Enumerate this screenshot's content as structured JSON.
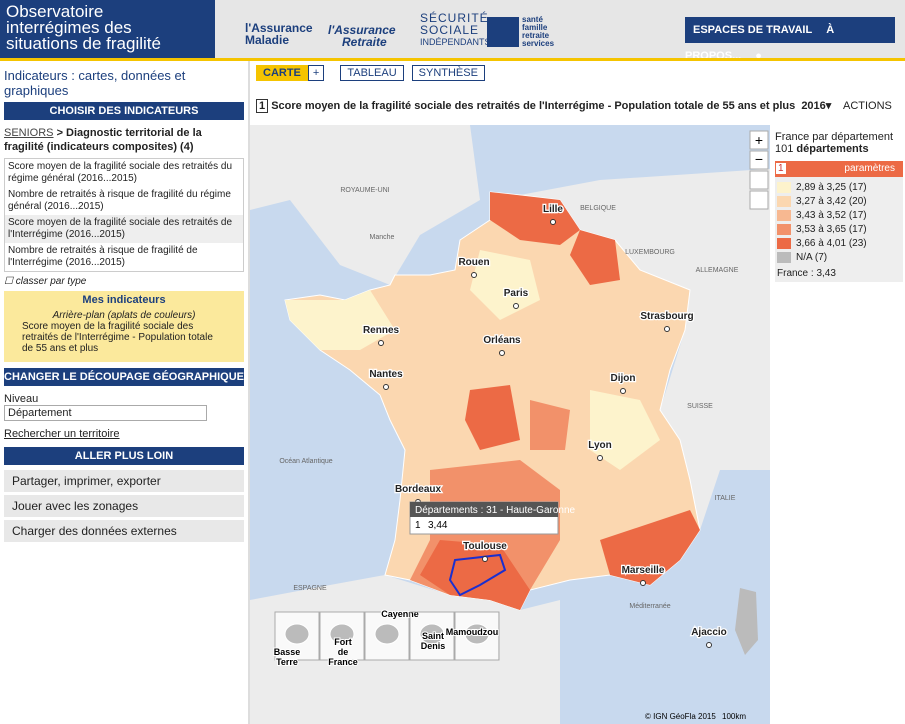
{
  "header": {
    "title": [
      "Observatoire",
      "interrégimes des",
      "situations de fragilité"
    ],
    "logos": [
      "l'Assurance",
      "Maladie",
      "l'Assurance",
      "Retraite",
      "SÉCURITÉ",
      "SOCIALE",
      "INDÉPENDANTS",
      "santé",
      "famille",
      "retraite",
      "services"
    ],
    "nav": [
      "ESPACES DE TRAVAIL",
      "À PROPOS..."
    ]
  },
  "sidebar": {
    "heading": "Indicateurs : cartes, données et graphiques",
    "choose": "CHOISIR DES INDICATEURS",
    "breadcrumb": {
      "link": "SENIORS",
      "rest": " > Diagnostic territorial de la fragilité (indicateurs composites) (4)"
    },
    "indicators": [
      "Score moyen de la fragilité sociale des retraités du régime général (2016...2015)",
      "Nombre de retraités à risque de fragilité du régime général (2016...2015)",
      "Score moyen de la fragilité sociale des retraités de l'Interrégime (2016...2015)",
      "Nombre de retraités à risque de fragilité de l'Interrégime (2016...2015)"
    ],
    "classify": "classer par type",
    "mine": {
      "title": "Mes indicateurs",
      "sub": "Arrière-plan (aplats de couleurs)",
      "item": "Score moyen de la fragilité sociale des retraités de l'Interrégime - Population totale de 55 ans et plus"
    },
    "geo": "CHANGER LE DÉCOUPAGE GÉOGRAPHIQUE",
    "level_label": "Niveau",
    "level": "Département",
    "search": "Rechercher un territoire",
    "more": "ALLER PLUS LOIN",
    "accordions": [
      "Partager, imprimer, exporter",
      "Jouer avec les zonages",
      "Charger des données externes"
    ]
  },
  "tabs": [
    "CARTE",
    "+",
    "TABLEAU",
    "SYNTHÈSE"
  ],
  "map": {
    "num": "1",
    "title": "Score moyen de la fragilité sociale des retraités de l'Interrégime - Population totale de 55 ans et plus",
    "year": "2016",
    "actions": "ACTIONS",
    "cities": [
      "Lille",
      "Rouen",
      "Paris",
      "Rennes",
      "Strasbourg",
      "Orléans",
      "Nantes",
      "Dijon",
      "Lyon",
      "Bordeaux",
      "Toulouse",
      "Marseille",
      "Ajaccio"
    ],
    "places": [
      "ROYAUME-UNI",
      "BELGIQUE",
      "Manche",
      "LUXEMBOURG",
      "ALLEMAGNE",
      "SUISSE",
      "Océan Atlantique",
      "ITALIE",
      "ESPAGNE",
      "Méditerranée"
    ],
    "tooltip": {
      "title": "Départements : 31 - Haute-Garonne",
      "num": "1",
      "value": "3,44"
    },
    "insets": [
      "Basse Terre",
      "Fort de France",
      "Cayenne",
      "Saint Denis",
      "Mamoudzou"
    ],
    "attribution": "© IGN GéoFla 2015",
    "scale": "100km"
  },
  "legend": {
    "scope": "France par département",
    "count": "101",
    "unit": "départements",
    "num": "1",
    "params": "paramètres",
    "classes": [
      {
        "label": "2,89 à 3,25 (17)",
        "color": "#fdf3cc"
      },
      {
        "label": "3,27 à 3,42 (20)",
        "color": "#fbd7b0"
      },
      {
        "label": "3,43 à 3,52 (17)",
        "color": "#f7b891"
      },
      {
        "label": "3,53 à 3,65 (17)",
        "color": "#f2916a"
      },
      {
        "label": "3,66 à 4,01 (23)",
        "color": "#ec6a45"
      }
    ],
    "na": "N/A (7)",
    "france": "France : 3,43"
  }
}
